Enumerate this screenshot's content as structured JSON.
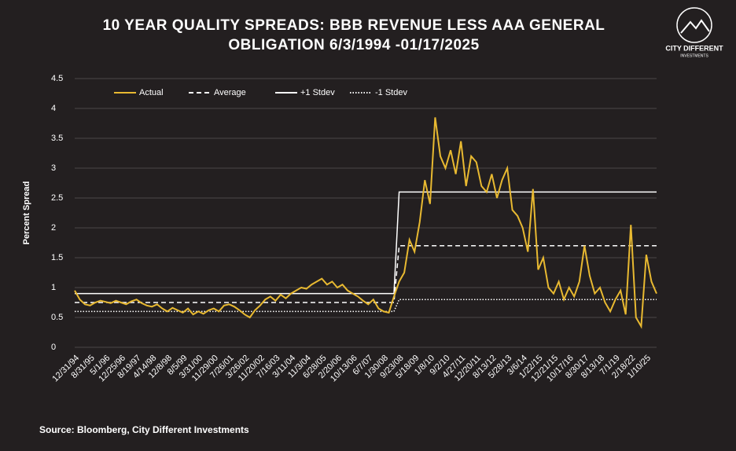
{
  "chart_data": {
    "type": "line",
    "title": "10 YEAR QUALITY SPREADS: BBB REVENUE LESS AAA GENERAL OBLIGATION 6/3/1994 -01/17/2025",
    "y_label": "Percent Spread",
    "source": "Source: Bloomberg, City Different Investments",
    "logo": {
      "name": "CITY DIFFERENT",
      "sub": "INVESTMENTS"
    },
    "categories": [
      "12/31/94",
      null,
      null,
      "8/31/95",
      null,
      null,
      "5/1/96",
      null,
      null,
      "12/25/96",
      null,
      null,
      "8/19/97",
      null,
      null,
      "4/14/98",
      null,
      null,
      "12/8/98",
      null,
      null,
      "8/5/99",
      null,
      null,
      "3/31/00",
      null,
      null,
      "11/29/00",
      null,
      null,
      "7/26/01",
      null,
      null,
      "3/26/02",
      null,
      null,
      "11/20/02",
      null,
      null,
      "7/16/03",
      null,
      null,
      "3/11/04",
      null,
      null,
      "11/3/04",
      null,
      null,
      "6/28/05",
      null,
      null,
      "2/20/06",
      null,
      null,
      "10/13/06",
      null,
      null,
      "6/7/07",
      null,
      null,
      "1/30/08",
      null,
      null,
      "9/23/08",
      null,
      null,
      "5/18/09",
      null,
      null,
      "1/8/10",
      null,
      null,
      "9/2/10",
      null,
      null,
      "4/27/11",
      null,
      null,
      "12/20/11",
      null,
      null,
      "8/13/12",
      null,
      null,
      "5/28/13",
      null,
      null,
      "3/6/14",
      null,
      null,
      "1/22/15",
      null,
      null,
      "12/21/15",
      null,
      null,
      "10/17/16",
      null,
      null,
      "8/30/17",
      null,
      null,
      "8/13/18",
      null,
      null,
      "7/1/19",
      null,
      null,
      "2/18/22",
      null,
      null,
      "1/10/25",
      null,
      null
    ],
    "series": [
      {
        "name": "Actual",
        "color": "#e8b931",
        "style": "solid",
        "values": [
          0.95,
          0.8,
          0.72,
          0.7,
          0.75,
          0.78,
          0.76,
          0.74,
          0.78,
          0.75,
          0.72,
          0.77,
          0.8,
          0.74,
          0.7,
          0.68,
          0.72,
          0.65,
          0.6,
          0.66,
          0.62,
          0.58,
          0.65,
          0.55,
          0.6,
          0.56,
          0.62,
          0.65,
          0.6,
          0.7,
          0.72,
          0.68,
          0.62,
          0.55,
          0.5,
          0.62,
          0.7,
          0.8,
          0.85,
          0.78,
          0.88,
          0.82,
          0.9,
          0.95,
          1.0,
          0.98,
          1.05,
          1.1,
          1.15,
          1.05,
          1.1,
          1.0,
          1.05,
          0.95,
          0.9,
          0.85,
          0.78,
          0.72,
          0.8,
          0.65,
          0.6,
          0.58,
          0.85,
          1.1,
          1.25,
          1.8,
          1.6,
          2.1,
          2.8,
          2.4,
          3.85,
          3.2,
          3.0,
          3.3,
          2.9,
          3.45,
          2.7,
          3.2,
          3.1,
          2.7,
          2.6,
          2.9,
          2.5,
          2.8,
          3.0,
          2.3,
          2.2,
          2.0,
          1.6,
          2.65,
          1.3,
          1.5,
          1.0,
          0.9,
          1.1,
          0.8,
          1.0,
          0.85,
          1.1,
          1.7,
          1.2,
          0.9,
          1.0,
          0.75,
          0.6,
          0.8,
          0.95,
          0.55,
          2.05,
          0.5,
          0.35,
          1.55,
          1.1,
          0.9
        ]
      },
      {
        "name": "Average",
        "color": "#ffffff",
        "style": "dashed",
        "values": [
          0.75,
          0.75,
          0.75,
          0.75,
          0.75,
          0.75,
          0.75,
          0.75,
          0.75,
          0.75,
          0.75,
          0.75,
          0.75,
          0.75,
          0.75,
          0.75,
          0.75,
          0.75,
          0.75,
          0.75,
          0.75,
          0.75,
          0.75,
          0.75,
          0.75,
          0.75,
          0.75,
          0.75,
          0.75,
          0.75,
          0.75,
          0.75,
          0.75,
          0.75,
          0.75,
          0.75,
          0.75,
          0.75,
          0.75,
          0.75,
          0.75,
          0.75,
          0.75,
          0.75,
          0.75,
          0.75,
          0.75,
          0.75,
          0.75,
          0.75,
          0.75,
          0.75,
          0.75,
          0.75,
          0.75,
          0.75,
          0.75,
          0.75,
          0.75,
          0.75,
          0.75,
          0.75,
          0.75,
          1.7,
          1.7,
          1.7,
          1.7,
          1.7,
          1.7,
          1.7,
          1.7,
          1.7,
          1.7,
          1.7,
          1.7,
          1.7,
          1.7,
          1.7,
          1.7,
          1.7,
          1.7,
          1.7,
          1.7,
          1.7,
          1.7,
          1.7,
          1.7,
          1.7,
          1.7,
          1.7,
          1.7,
          1.7,
          1.7,
          1.7,
          1.7,
          1.7,
          1.7,
          1.7,
          1.7,
          1.7,
          1.7,
          1.7,
          1.7,
          1.7,
          1.7,
          1.7,
          1.7,
          1.7,
          1.7,
          1.7,
          1.7,
          1.7,
          1.7,
          1.7
        ]
      },
      {
        "name": "+1 Stdev",
        "color": "#ffffff",
        "style": "solid",
        "values": [
          0.9,
          0.9,
          0.9,
          0.9,
          0.9,
          0.9,
          0.9,
          0.9,
          0.9,
          0.9,
          0.9,
          0.9,
          0.9,
          0.9,
          0.9,
          0.9,
          0.9,
          0.9,
          0.9,
          0.9,
          0.9,
          0.9,
          0.9,
          0.9,
          0.9,
          0.9,
          0.9,
          0.9,
          0.9,
          0.9,
          0.9,
          0.9,
          0.9,
          0.9,
          0.9,
          0.9,
          0.9,
          0.9,
          0.9,
          0.9,
          0.9,
          0.9,
          0.9,
          0.9,
          0.9,
          0.9,
          0.9,
          0.9,
          0.9,
          0.9,
          0.9,
          0.9,
          0.9,
          0.9,
          0.9,
          0.9,
          0.9,
          0.9,
          0.9,
          0.9,
          0.9,
          0.9,
          0.9,
          2.6,
          2.6,
          2.6,
          2.6,
          2.6,
          2.6,
          2.6,
          2.6,
          2.6,
          2.6,
          2.6,
          2.6,
          2.6,
          2.6,
          2.6,
          2.6,
          2.6,
          2.6,
          2.6,
          2.6,
          2.6,
          2.6,
          2.6,
          2.6,
          2.6,
          2.6,
          2.6,
          2.6,
          2.6,
          2.6,
          2.6,
          2.6,
          2.6,
          2.6,
          2.6,
          2.6,
          2.6,
          2.6,
          2.6,
          2.6,
          2.6,
          2.6,
          2.6,
          2.6,
          2.6,
          2.6,
          2.6,
          2.6,
          2.6,
          2.6,
          2.6
        ]
      },
      {
        "name": "-1 Stdev",
        "color": "#ffffff",
        "style": "dotted",
        "values": [
          0.6,
          0.6,
          0.6,
          0.6,
          0.6,
          0.6,
          0.6,
          0.6,
          0.6,
          0.6,
          0.6,
          0.6,
          0.6,
          0.6,
          0.6,
          0.6,
          0.6,
          0.6,
          0.6,
          0.6,
          0.6,
          0.6,
          0.6,
          0.6,
          0.6,
          0.6,
          0.6,
          0.6,
          0.6,
          0.6,
          0.6,
          0.6,
          0.6,
          0.6,
          0.6,
          0.6,
          0.6,
          0.6,
          0.6,
          0.6,
          0.6,
          0.6,
          0.6,
          0.6,
          0.6,
          0.6,
          0.6,
          0.6,
          0.6,
          0.6,
          0.6,
          0.6,
          0.6,
          0.6,
          0.6,
          0.6,
          0.6,
          0.6,
          0.6,
          0.6,
          0.6,
          0.6,
          0.6,
          0.8,
          0.8,
          0.8,
          0.8,
          0.8,
          0.8,
          0.8,
          0.8,
          0.8,
          0.8,
          0.8,
          0.8,
          0.8,
          0.8,
          0.8,
          0.8,
          0.8,
          0.8,
          0.8,
          0.8,
          0.8,
          0.8,
          0.8,
          0.8,
          0.8,
          0.8,
          0.8,
          0.8,
          0.8,
          0.8,
          0.8,
          0.8,
          0.8,
          0.8,
          0.8,
          0.8,
          0.8,
          0.8,
          0.8,
          0.8,
          0.8,
          0.8,
          0.8,
          0.8,
          0.8,
          0.8,
          0.8,
          0.8,
          0.8,
          0.8,
          0.8
        ]
      }
    ],
    "ylim": [
      0,
      4.5
    ],
    "yticks": [
      0,
      0.5,
      1,
      1.5,
      2,
      2.5,
      3,
      3.5,
      4,
      4.5
    ],
    "grid": true,
    "legend": "top"
  }
}
